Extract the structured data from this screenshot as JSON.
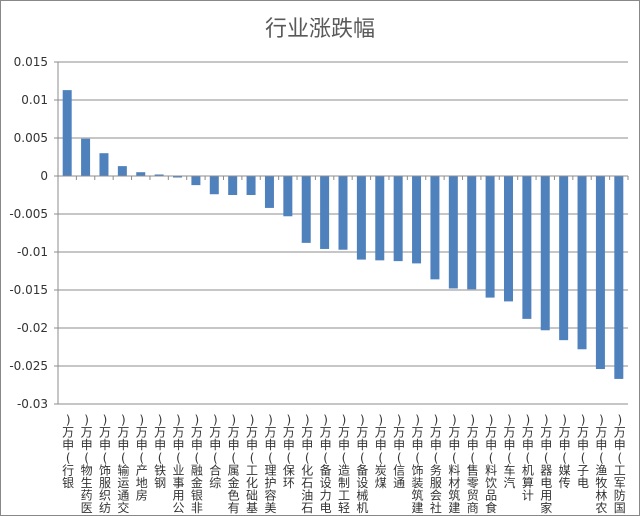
{
  "chart_data": {
    "type": "bar",
    "title": "行业涨跌幅",
    "xlabel": "",
    "ylabel": "",
    "ylim": [
      -0.03,
      0.015
    ],
    "yticks": [
      0.015,
      0.01,
      0.005,
      0,
      -0.005,
      -0.01,
      -0.015,
      -0.02,
      -0.025,
      -0.03
    ],
    "ytick_labels": [
      "0.015",
      "0.01",
      "0.005",
      "0",
      "-0.005",
      "-0.01",
      "-0.015",
      "-0.02",
      "-0.025",
      "-0.03"
    ],
    "grid": true,
    "legend": "none",
    "bar_color": "#4f81bd",
    "categories": [
      "银行(申万)",
      "医药生物(申万)",
      "纺织服饰(申万)",
      "交通运输(申万)",
      "房地产(申万)",
      "钢铁(申万)",
      "公用事业(申万)",
      "非银金融(申万)",
      "综合(申万)",
      "有色金属(申万)",
      "基础化工(申万)",
      "美容护理(申万)",
      "环保(申万)",
      "石油石化(申万)",
      "电力设备(申万)",
      "轻工制造(申万)",
      "机械设备(申万)",
      "煤炭(申万)",
      "通信(申万)",
      "建筑装饰(申万)",
      "社会服务(申万)",
      "建筑材料(申万)",
      "商贸零售(申万)",
      "食品饮料(申万)",
      "汽车(申万)",
      "计算机(申万)",
      "家用电器(申万)",
      "传媒(申万)",
      "电子(申万)",
      "农林牧渔(申万)",
      "国防军工(申万)"
    ],
    "values": [
      0.0113,
      0.0049,
      0.003,
      0.0013,
      0.0005,
      0.0002,
      -0.0002,
      -0.0012,
      -0.0024,
      -0.0025,
      -0.0025,
      -0.0042,
      -0.0053,
      -0.0088,
      -0.0096,
      -0.0097,
      -0.011,
      -0.0111,
      -0.0112,
      -0.0115,
      -0.0136,
      -0.0148,
      -0.0149,
      -0.016,
      -0.0165,
      -0.0188,
      -0.0203,
      -0.0216,
      -0.0228,
      -0.0254,
      -0.0267
    ]
  }
}
